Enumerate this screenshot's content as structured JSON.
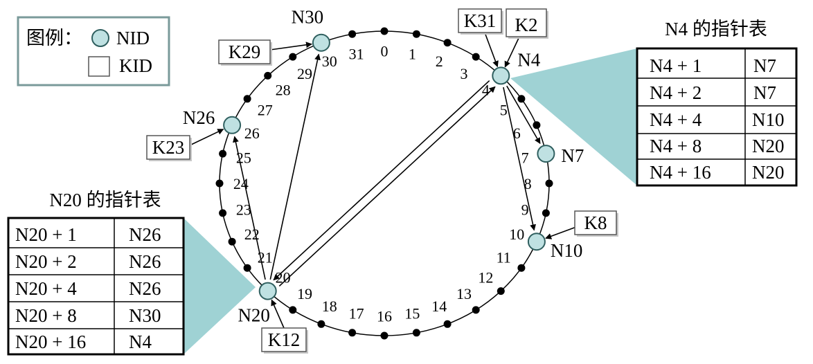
{
  "legend": {
    "title": "图例：",
    "node_label": "NID",
    "key_label": "KID"
  },
  "colors": {
    "node_fill": "#bfe1e2",
    "node_stroke": "#2f5f5f",
    "wedge": "#9fd2d4",
    "ink": "#000000"
  },
  "ring": {
    "id_count": 32,
    "id_labels": [
      "0",
      "1",
      "2",
      "3",
      "4",
      "5",
      "6",
      "7",
      "8",
      "9",
      "10",
      "11",
      "12",
      "13",
      "14",
      "15",
      "16",
      "17",
      "18",
      "19",
      "20",
      "21",
      "22",
      "23",
      "24",
      "25",
      "26",
      "27",
      "28",
      "29",
      "30",
      "31"
    ],
    "nodes": [
      {
        "id": 4,
        "label": "N4"
      },
      {
        "id": 7,
        "label": "N7"
      },
      {
        "id": 10,
        "label": "N10"
      },
      {
        "id": 20,
        "label": "N20"
      },
      {
        "id": 26,
        "label": "N26"
      },
      {
        "id": 30,
        "label": "N30"
      }
    ],
    "keys": [
      {
        "id": 31,
        "label": "K31",
        "target": "N4"
      },
      {
        "id": 2,
        "label": "K2",
        "target": "N4"
      },
      {
        "id": 8,
        "label": "K8",
        "target": "N10"
      },
      {
        "id": 12,
        "label": "K12",
        "target": "N20"
      },
      {
        "id": 23,
        "label": "K23",
        "target": "N26"
      },
      {
        "id": 29,
        "label": "K29",
        "target": "N30"
      }
    ],
    "fingers": [
      {
        "from": 4,
        "to": 7
      },
      {
        "from": 4,
        "to": 10
      },
      {
        "from": 4,
        "to": 20
      },
      {
        "from": 20,
        "to": 26
      },
      {
        "from": 20,
        "to": 30
      },
      {
        "from": 20,
        "to": 4
      }
    ]
  },
  "finger_tables": [
    {
      "owner": "N4",
      "title": "N4 的指针表",
      "rows": [
        {
          "start": "N4 + 1",
          "successor": "N7"
        },
        {
          "start": "N4 + 2",
          "successor": "N7"
        },
        {
          "start": "N4 + 4",
          "successor": "N10"
        },
        {
          "start": "N4 + 8",
          "successor": "N20"
        },
        {
          "start": "N4 + 16",
          "successor": "N20"
        }
      ]
    },
    {
      "owner": "N20",
      "title": "N20 的指针表",
      "rows": [
        {
          "start": "N20 + 1",
          "successor": "N26"
        },
        {
          "start": "N20 + 2",
          "successor": "N26"
        },
        {
          "start": "N20 + 4",
          "successor": "N26"
        },
        {
          "start": "N20 + 8",
          "successor": "N30"
        },
        {
          "start": "N20 + 16",
          "successor": "N4"
        }
      ]
    }
  ]
}
